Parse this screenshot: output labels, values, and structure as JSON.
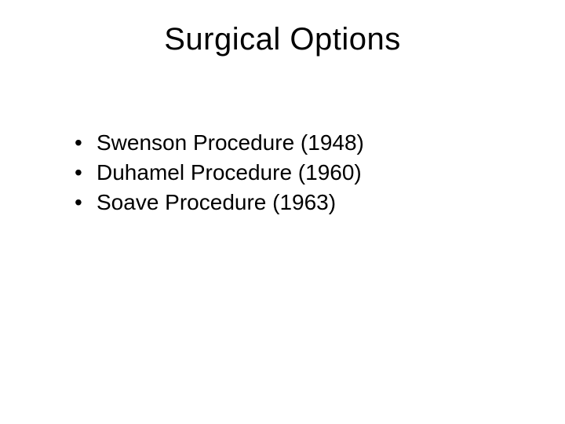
{
  "slide": {
    "title": "Surgical Options",
    "bullets": [
      "Swenson Procedure (1948)",
      "Duhamel Procedure (1960)",
      "Soave Procedure (1963)"
    ],
    "background_color": "#ffffff",
    "text_color": "#000000",
    "title_fontsize": 40,
    "bullet_fontsize": 28
  }
}
